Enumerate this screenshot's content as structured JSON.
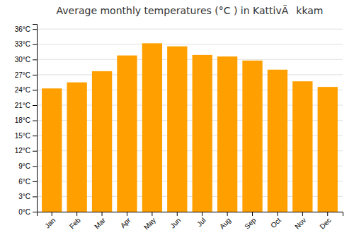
{
  "chart_data": {
    "type": "bar",
    "title": "Average monthly temperatures (°C ) in KattivÄkkam",
    "categories": [
      "Jan",
      "Feb",
      "Mar",
      "Apr",
      "May",
      "Jun",
      "Jul",
      "Aug",
      "Sep",
      "Oct",
      "Nov",
      "Dec"
    ],
    "values": [
      24.3,
      25.5,
      27.7,
      30.8,
      33.2,
      32.6,
      30.9,
      30.6,
      29.8,
      28.0,
      25.7,
      24.6
    ],
    "color": "#FFA000",
    "ylim": [
      0,
      37
    ],
    "yticks": [
      {
        "value": 0,
        "label": "0°C"
      },
      {
        "value": 3,
        "label": "3°C"
      },
      {
        "value": 6,
        "label": "6°C"
      },
      {
        "value": 9,
        "label": "9°C"
      },
      {
        "value": 12,
        "label": "12°C"
      },
      {
        "value": 15,
        "label": "15°C"
      },
      {
        "value": 18,
        "label": "18°C"
      },
      {
        "value": 21,
        "label": "21°C"
      },
      {
        "value": 24,
        "label": "24°C"
      },
      {
        "value": 27,
        "label": "27°C"
      },
      {
        "value": 30,
        "label": "30°C"
      },
      {
        "value": 33,
        "label": "33°C"
      },
      {
        "value": 36,
        "label": "36°C"
      }
    ],
    "grid": true
  }
}
